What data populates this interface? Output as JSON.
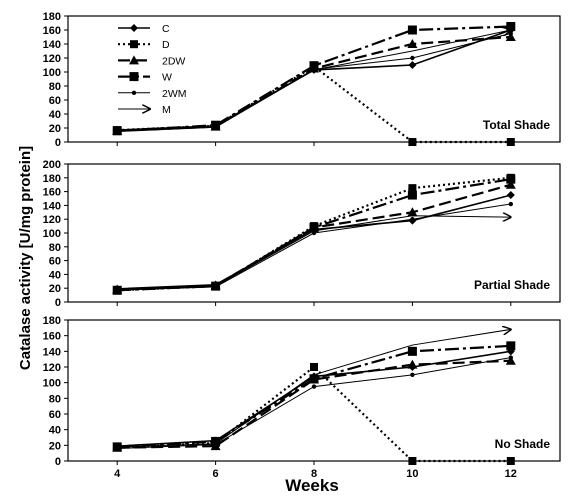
{
  "chart_data": {
    "type": "line",
    "ylabel": "Catalase activity [U/mg protein]",
    "xlabel": "Weeks",
    "x": [
      4,
      6,
      8,
      10,
      12
    ],
    "xticks": [
      "4",
      "6",
      "8",
      "10",
      "12"
    ],
    "colors": {
      "line": "#000000",
      "frame": "#000000",
      "background": "#ffffff"
    },
    "legend": {
      "placement": "top-left of first panel",
      "entries": [
        {
          "name": "C",
          "marker": "diamond",
          "dash": "solid"
        },
        {
          "name": "D",
          "marker": "square",
          "dash": "dotted"
        },
        {
          "name": "2DW",
          "marker": "triangle",
          "dash": "long-dash"
        },
        {
          "name": "W",
          "marker": "square",
          "dash": "dash-dot"
        },
        {
          "name": "2WM",
          "marker": "circle",
          "dash": "solid-thin"
        },
        {
          "name": "M",
          "marker": "arrow",
          "dash": "solid-thin"
        }
      ]
    },
    "panels": [
      {
        "label": "Total Shade",
        "ylim": [
          0,
          180
        ],
        "yticks": [
          "0",
          "20",
          "40",
          "60",
          "80",
          "100",
          "120",
          "140",
          "160",
          "180"
        ],
        "series": [
          {
            "name": "C",
            "values": [
              17,
              23,
              103,
              110,
              160
            ]
          },
          {
            "name": "D",
            "values": [
              17,
              23,
              108,
              0,
              0
            ]
          },
          {
            "name": "2DW",
            "values": [
              16,
              22,
              105,
              140,
              150
            ]
          },
          {
            "name": "W",
            "values": [
              16,
              24,
              109,
              160,
              165
            ]
          },
          {
            "name": "2WM",
            "values": [
              16,
              22,
              104,
              120,
              155
            ]
          },
          {
            "name": "M",
            "values": [
              15,
              21,
              103,
              130,
              160
            ]
          }
        ]
      },
      {
        "label": "Partial Shade",
        "ylim": [
          0,
          200
        ],
        "yticks": [
          "0",
          "20",
          "40",
          "60",
          "80",
          "100",
          "120",
          "140",
          "160",
          "180",
          "200"
        ],
        "series": [
          {
            "name": "C",
            "values": [
              19,
              25,
              105,
              118,
              155
            ]
          },
          {
            "name": "D",
            "values": [
              17,
              23,
              110,
              165,
              180
            ]
          },
          {
            "name": "2DW",
            "values": [
              18,
              24,
              108,
              130,
              170
            ]
          },
          {
            "name": "W",
            "values": [
              17,
              23,
              108,
              155,
              178
            ]
          },
          {
            "name": "2WM",
            "values": [
              17,
              22,
              100,
              120,
              142
            ]
          },
          {
            "name": "M",
            "values": [
              18,
              23,
              103,
              125,
              123
            ]
          }
        ]
      },
      {
        "label": "No Shade",
        "ylim": [
          0,
          180
        ],
        "yticks": [
          "0",
          "20",
          "40",
          "60",
          "80",
          "100",
          "120",
          "140",
          "160",
          "180"
        ],
        "series": [
          {
            "name": "C",
            "values": [
              19,
              26,
              108,
              120,
              140
            ]
          },
          {
            "name": "D",
            "values": [
              17,
              23,
              120,
              0,
              0
            ]
          },
          {
            "name": "2DW",
            "values": [
              17,
              19,
              104,
              123,
              128
            ]
          },
          {
            "name": "W",
            "values": [
              18,
              25,
              105,
              140,
              147
            ]
          },
          {
            "name": "2WM",
            "values": [
              16,
              21,
              95,
              110,
              132
            ]
          },
          {
            "name": "M",
            "values": [
              18,
              22,
              110,
              148,
              168
            ]
          }
        ]
      }
    ]
  }
}
